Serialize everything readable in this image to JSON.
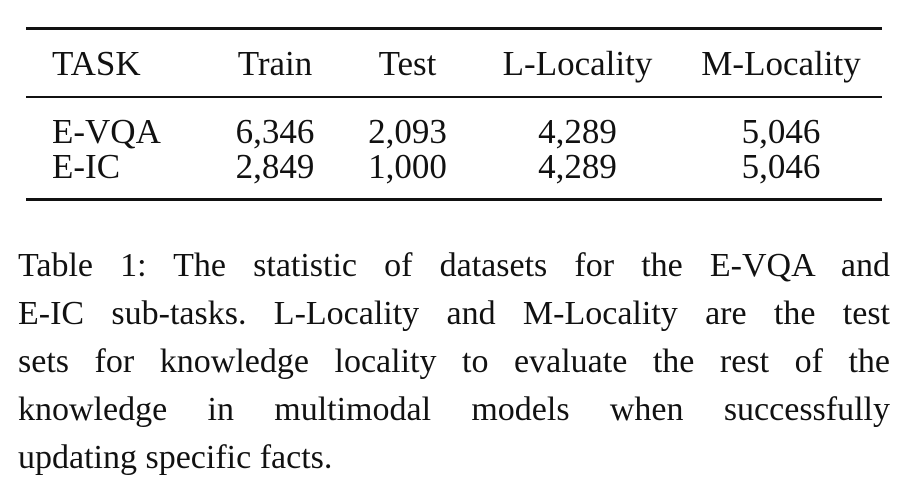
{
  "table": {
    "headers": [
      "TASK",
      "Train",
      "Test",
      "L-Locality",
      "M-Locality"
    ],
    "rows": [
      [
        "E-VQA",
        "6,346",
        "2,093",
        "4,289",
        "5,046"
      ],
      [
        "E-IC",
        "2,849",
        "1,000",
        "4,289",
        "5,046"
      ]
    ]
  },
  "caption": {
    "lines": [
      "Table 1:  The statistic of datasets for the E-VQA and",
      "E-IC sub-tasks. L-Locality and M-Locality are the test",
      "sets for knowledge locality to evaluate the rest of the",
      "knowledge in multimodal models when successfully",
      "updating specific facts."
    ]
  }
}
